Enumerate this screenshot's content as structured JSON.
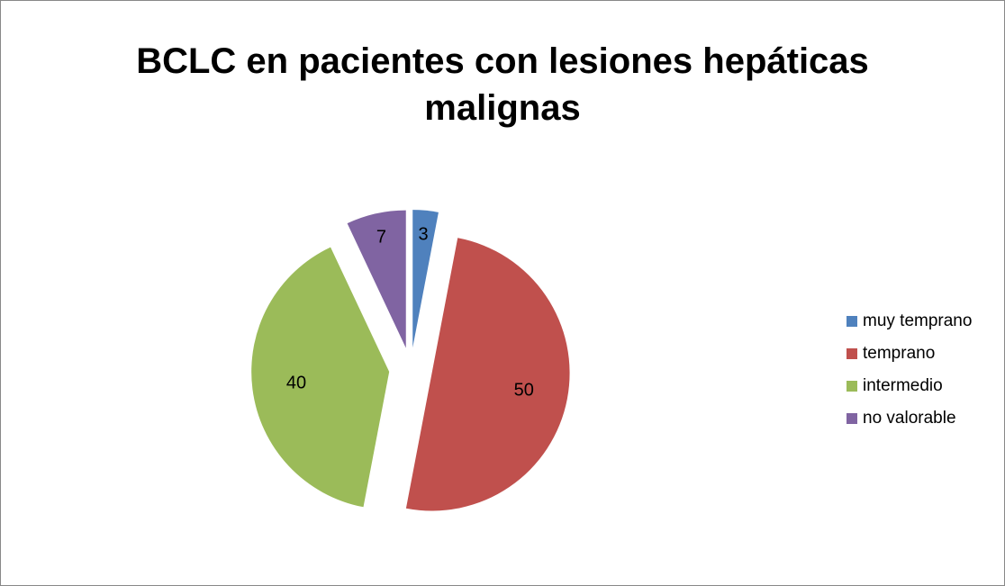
{
  "chart_data": {
    "type": "pie",
    "title": "BCLC en pacientes con lesiones hepáticas malignas",
    "categories": [
      "muy temprano",
      "temprano",
      "intermedio",
      "no valorable"
    ],
    "values": [
      3,
      50,
      40,
      7
    ],
    "colors": [
      "#4f81bd",
      "#c0504d",
      "#9bbb59",
      "#8064a2"
    ],
    "exploded": true,
    "legend": "right"
  }
}
